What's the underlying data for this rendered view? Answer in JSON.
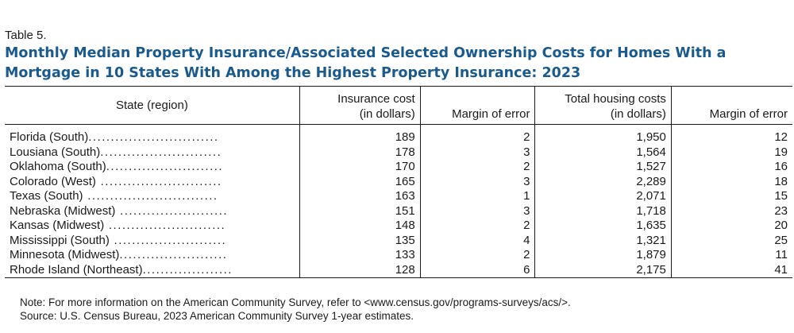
{
  "table_label": "Table 5.",
  "title_line1": "Monthly Median Property Insurance/Associated Selected Ownership Costs for Homes With a",
  "title_line2": "Mortgage in 10 States With Among the Highest Property Insurance: 2023",
  "headers": {
    "state": "State (region)",
    "insurance_1": "Insurance cost",
    "insurance_2": "(in dollars)",
    "moe1": "Margin of error",
    "housing_1": "Total housing costs",
    "housing_2": "(in dollars)",
    "moe2": "Margin of error"
  },
  "rows": [
    {
      "state": "Florida (South)",
      "dots": ".............................",
      "insurance": "189",
      "moe1": "2",
      "housing": "1,950",
      "moe2": "12"
    },
    {
      "state": "Lousiana (South)",
      "dots": "...........................",
      "insurance": "178",
      "moe1": "3",
      "housing": "1,564",
      "moe2": "19"
    },
    {
      "state": "Oklahoma (South)",
      "dots": "..........................",
      "insurance": "170",
      "moe1": "2",
      "housing": "1,527",
      "moe2": "16"
    },
    {
      "state": "Colorado (West)",
      "dots": " ...........................",
      "insurance": "165",
      "moe1": "3",
      "housing": "2,289",
      "moe2": "18"
    },
    {
      "state": "Texas (South)",
      "dots": " .............................",
      "insurance": "163",
      "moe1": "1",
      "housing": "2,071",
      "moe2": "15"
    },
    {
      "state": "Nebraska (Midwest)",
      "dots": " ........................",
      "insurance": "151",
      "moe1": "3",
      "housing": "1,718",
      "moe2": "23"
    },
    {
      "state": "Kansas (Midwest)",
      "dots": " ..........................",
      "insurance": "148",
      "moe1": "2",
      "housing": "1,635",
      "moe2": "20"
    },
    {
      "state": "Mississippi (South)",
      "dots": " .........................",
      "insurance": "135",
      "moe1": "4",
      "housing": "1,321",
      "moe2": "25"
    },
    {
      "state": "Minnesota (Midwest)",
      "dots": "........................",
      "insurance": "133",
      "moe1": "2",
      "housing": "1,879",
      "moe2": "11"
    },
    {
      "state": "Rhode Island (Northeast)",
      "dots": "....................",
      "insurance": "128",
      "moe1": "6",
      "housing": "2,175",
      "moe2": "41"
    }
  ],
  "note": "Note: For more information on the American Community Survey, refer to <www.census.gov/programs-surveys/acs/>.",
  "source": "Source: U.S. Census Bureau, 2023 American Community Survey 1-year estimates."
}
